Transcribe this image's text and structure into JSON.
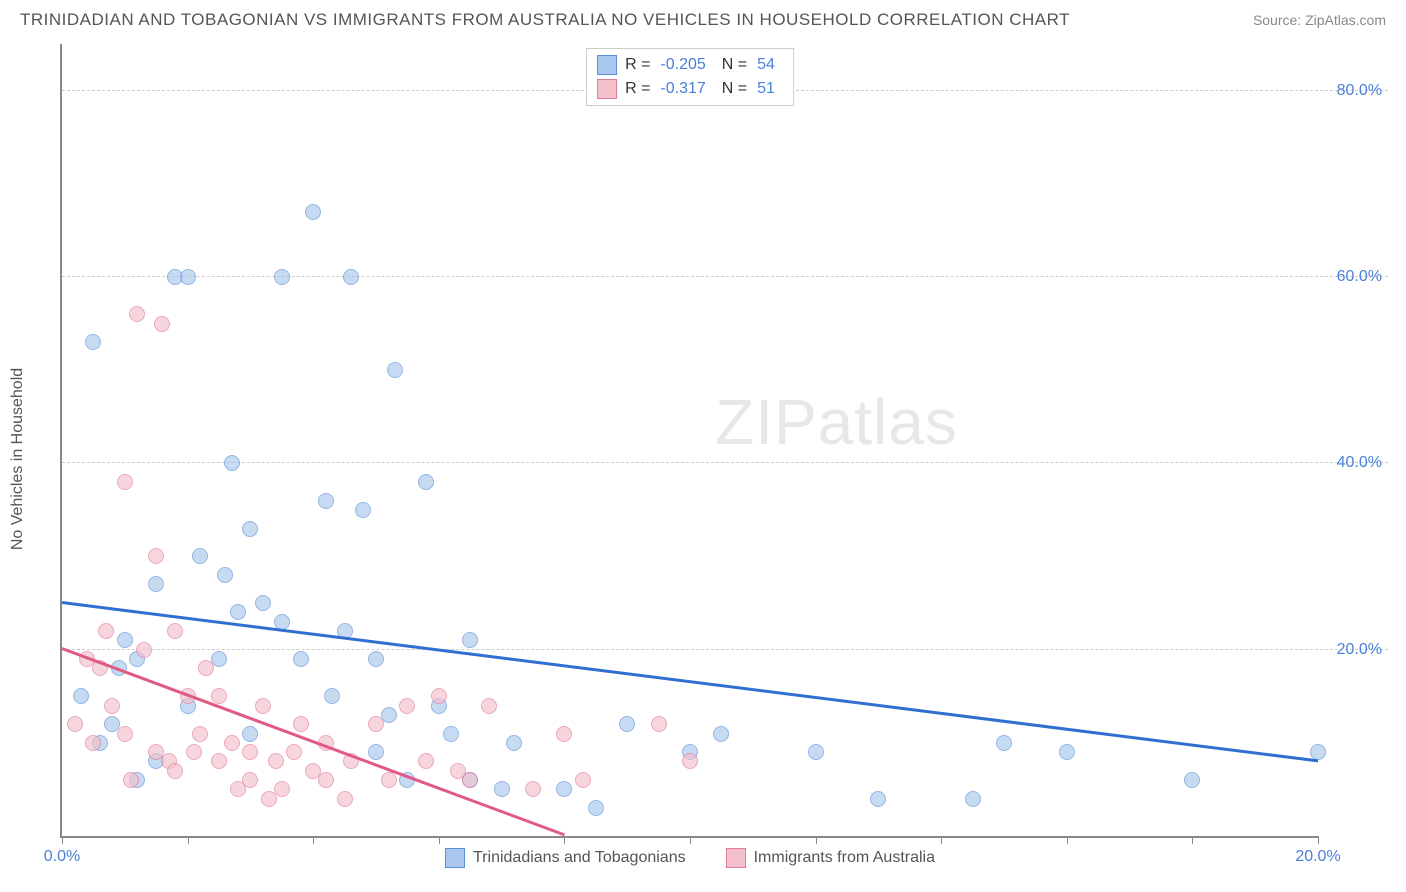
{
  "title": "TRINIDADIAN AND TOBAGONIAN VS IMMIGRANTS FROM AUSTRALIA NO VEHICLES IN HOUSEHOLD CORRELATION CHART",
  "source": "Source: ZipAtlas.com",
  "watermark_zip": "ZIP",
  "watermark_atlas": "atlas",
  "y_axis_label": "No Vehicles in Household",
  "chart": {
    "type": "scatter",
    "xlim": [
      0,
      20
    ],
    "ylim": [
      0,
      85
    ],
    "x_ticks": [
      0,
      2,
      4,
      6,
      8,
      10,
      12,
      14,
      16,
      18,
      20
    ],
    "x_tick_labels": {
      "0": "0.0%",
      "20": "20.0%"
    },
    "y_gridlines": [
      20,
      40,
      60,
      80
    ],
    "y_tick_labels": {
      "20": "20.0%",
      "40": "40.0%",
      "60": "60.0%",
      "80": "80.0%"
    },
    "background_color": "#ffffff",
    "grid_color": "#cccccc",
    "axis_color": "#888888",
    "tick_label_color": "#4a7fd8",
    "point_radius": 8,
    "point_opacity": 0.65,
    "series": [
      {
        "name": "Trinidadians and Tobagonians",
        "fill_color": "#a9c7ec",
        "stroke_color": "#5b8fd6",
        "line_color": "#2f6fd0",
        "line_width": 2.5,
        "R_label": "R =",
        "R_value": "-0.205",
        "N_label": "N =",
        "N_value": "54",
        "trend": {
          "x1": 0,
          "y1": 25,
          "x2": 20,
          "y2": 8
        },
        "points": [
          [
            0.5,
            53
          ],
          [
            1.2,
            19
          ],
          [
            1.5,
            27
          ],
          [
            1.8,
            60
          ],
          [
            1.0,
            21
          ],
          [
            0.8,
            12
          ],
          [
            0.6,
            10
          ],
          [
            0.3,
            15
          ],
          [
            2.2,
            30
          ],
          [
            2.0,
            60
          ],
          [
            2.5,
            19
          ],
          [
            2.6,
            28
          ],
          [
            2.8,
            24
          ],
          [
            2.7,
            40
          ],
          [
            3.0,
            33
          ],
          [
            3.2,
            25
          ],
          [
            3.5,
            23
          ],
          [
            3.5,
            60
          ],
          [
            3.8,
            19
          ],
          [
            4.0,
            67
          ],
          [
            4.2,
            36
          ],
          [
            4.5,
            22
          ],
          [
            4.8,
            35
          ],
          [
            4.6,
            60
          ],
          [
            5.0,
            19
          ],
          [
            5.0,
            9
          ],
          [
            5.2,
            13
          ],
          [
            5.3,
            50
          ],
          [
            5.5,
            6
          ],
          [
            5.8,
            38
          ],
          [
            6.0,
            14
          ],
          [
            6.2,
            11
          ],
          [
            6.5,
            6
          ],
          [
            7.0,
            5
          ],
          [
            6.5,
            21
          ],
          [
            7.2,
            10
          ],
          [
            8.0,
            5
          ],
          [
            8.5,
            3
          ],
          [
            9.0,
            12
          ],
          [
            10.0,
            9
          ],
          [
            10.5,
            11
          ],
          [
            12.0,
            9
          ],
          [
            13.0,
            4
          ],
          [
            14.5,
            4
          ],
          [
            15.0,
            10
          ],
          [
            16.0,
            9
          ],
          [
            18.0,
            6
          ],
          [
            20.0,
            9
          ],
          [
            3.0,
            11
          ],
          [
            2.0,
            14
          ],
          [
            1.5,
            8
          ],
          [
            1.2,
            6
          ],
          [
            0.9,
            18
          ],
          [
            4.3,
            15
          ]
        ]
      },
      {
        "name": "Immigrants from Australia",
        "fill_color": "#f4c0cc",
        "stroke_color": "#e37a9a",
        "line_color": "#e05a85",
        "line_width": 2.5,
        "R_label": "R =",
        "R_value": "-0.317",
        "N_label": "N =",
        "N_value": "51",
        "trend": {
          "x1": 0,
          "y1": 20,
          "x2": 8,
          "y2": 0
        },
        "points": [
          [
            0.2,
            12
          ],
          [
            0.4,
            19
          ],
          [
            0.5,
            10
          ],
          [
            0.6,
            18
          ],
          [
            0.7,
            22
          ],
          [
            0.8,
            14
          ],
          [
            1.0,
            38
          ],
          [
            1.0,
            11
          ],
          [
            1.2,
            56
          ],
          [
            1.3,
            20
          ],
          [
            1.5,
            30
          ],
          [
            1.5,
            9
          ],
          [
            1.6,
            55
          ],
          [
            1.7,
            8
          ],
          [
            1.8,
            22
          ],
          [
            1.8,
            7
          ],
          [
            2.0,
            15
          ],
          [
            2.1,
            9
          ],
          [
            2.2,
            11
          ],
          [
            2.3,
            18
          ],
          [
            2.5,
            8
          ],
          [
            2.5,
            15
          ],
          [
            2.7,
            10
          ],
          [
            3.0,
            9
          ],
          [
            3.0,
            6
          ],
          [
            3.2,
            14
          ],
          [
            3.4,
            8
          ],
          [
            3.5,
            5
          ],
          [
            3.7,
            9
          ],
          [
            3.8,
            12
          ],
          [
            4.0,
            7
          ],
          [
            4.2,
            6
          ],
          [
            4.2,
            10
          ],
          [
            4.5,
            4
          ],
          [
            4.6,
            8
          ],
          [
            5.0,
            12
          ],
          [
            5.2,
            6
          ],
          [
            5.5,
            14
          ],
          [
            5.8,
            8
          ],
          [
            6.0,
            15
          ],
          [
            6.3,
            7
          ],
          [
            6.5,
            6
          ],
          [
            6.8,
            14
          ],
          [
            7.5,
            5
          ],
          [
            8.0,
            11
          ],
          [
            8.3,
            6
          ],
          [
            9.5,
            12
          ],
          [
            10.0,
            8
          ],
          [
            2.8,
            5
          ],
          [
            3.3,
            4
          ],
          [
            1.1,
            6
          ]
        ]
      }
    ]
  },
  "legend": {
    "series1_label": "Trinidadians and Tobagonians",
    "series2_label": "Immigrants from Australia"
  }
}
